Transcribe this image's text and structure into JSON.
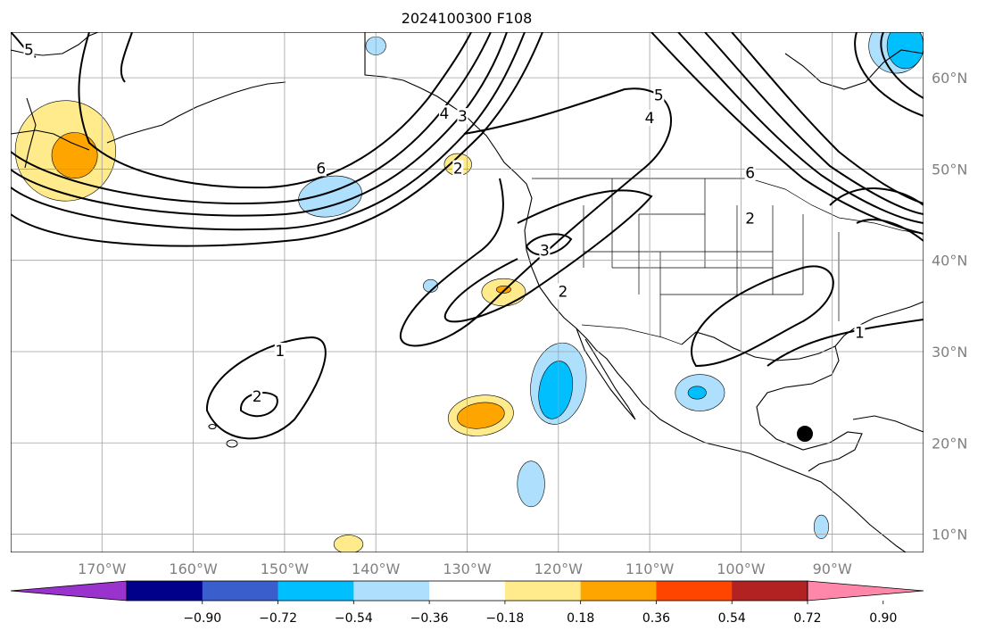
{
  "title": "2024100300 F108",
  "map": {
    "lon_ticks": [
      {
        "lon": -170,
        "label": "170°W"
      },
      {
        "lon": -160,
        "label": "160°W"
      },
      {
        "lon": -150,
        "label": "150°W"
      },
      {
        "lon": -140,
        "label": "140°W"
      },
      {
        "lon": -130,
        "label": "130°W"
      },
      {
        "lon": -120,
        "label": "120°W"
      },
      {
        "lon": -110,
        "label": "110°W"
      },
      {
        "lon": -100,
        "label": "100°W"
      },
      {
        "lon": -90,
        "label": "90°W"
      }
    ],
    "lat_ticks": [
      {
        "lat": 60,
        "label": "60°N"
      },
      {
        "lat": 50,
        "label": "50°N"
      },
      {
        "lat": 40,
        "label": "40°N"
      },
      {
        "lat": 30,
        "label": "30°N"
      },
      {
        "lat": 20,
        "label": "20°N"
      },
      {
        "lat": 10,
        "label": "10°N"
      }
    ],
    "extent": {
      "lon_min": -180,
      "lon_max": -80,
      "lat_min": 8,
      "lat_max": 65
    },
    "marker": {
      "lon": -93,
      "lat": 21,
      "color": "#000000"
    },
    "contour_labels": [
      {
        "text": "5",
        "lon": -178,
        "lat": 63
      },
      {
        "text": "6",
        "lon": -146,
        "lat": 50
      },
      {
        "text": "4",
        "lon": -132.5,
        "lat": 56
      },
      {
        "text": "3",
        "lon": -130.5,
        "lat": 55.7
      },
      {
        "text": "2",
        "lon": -131,
        "lat": 50
      },
      {
        "text": "3",
        "lon": -121.5,
        "lat": 41
      },
      {
        "text": "2",
        "lon": -119.5,
        "lat": 36.5
      },
      {
        "text": "1",
        "lon": -150.5,
        "lat": 30
      },
      {
        "text": "2",
        "lon": -153,
        "lat": 25
      },
      {
        "text": "5",
        "lon": -109,
        "lat": 58
      },
      {
        "text": "4",
        "lon": -110,
        "lat": 55.5
      },
      {
        "text": "6",
        "lon": -99,
        "lat": 49.5
      },
      {
        "text": "2",
        "lon": -99,
        "lat": 44.5
      },
      {
        "text": "1",
        "lon": -87,
        "lat": 32
      }
    ],
    "shading": [
      {
        "level": "0.18",
        "color": "#ffea8c",
        "lon": -174,
        "lat": 52,
        "rx": 5.5,
        "ry": 5.5,
        "rot": 40
      },
      {
        "level": "0.36",
        "color": "#ffa500",
        "lon": -173,
        "lat": 51.5,
        "rx": 2.5,
        "ry": 2.5,
        "rot": 40
      },
      {
        "level": "0.18",
        "color": "#ffea8c",
        "lon": -131,
        "lat": 50.5,
        "rx": 1.5,
        "ry": 1.2,
        "rot": 0
      },
      {
        "level": "-0.18",
        "color": "#aee0fd",
        "lon": -145,
        "lat": 47,
        "rx": 3.5,
        "ry": 2.2,
        "rot": -10
      },
      {
        "level": "-0.18",
        "color": "#aee0fd",
        "lon": -140,
        "lat": 63.5,
        "rx": 1.1,
        "ry": 1.0,
        "rot": 0
      },
      {
        "level": "0.18",
        "color": "#ffea8c",
        "lon": -126,
        "lat": 36.5,
        "rx": 2.4,
        "ry": 1.5,
        "rot": 0
      },
      {
        "level": "0.36",
        "color": "#ffa500",
        "lon": -126,
        "lat": 36.8,
        "rx": 0.8,
        "ry": 0.4,
        "rot": 0
      },
      {
        "level": "-0.18",
        "color": "#aee0fd",
        "lon": -134,
        "lat": 37.2,
        "rx": 0.8,
        "ry": 0.7,
        "rot": 0
      },
      {
        "level": "-0.18",
        "color": "#aee0fd",
        "lon": -120,
        "lat": 26.5,
        "rx": 3.0,
        "ry": 4.5,
        "rot": 10
      },
      {
        "level": "-0.36",
        "color": "#00bfff",
        "lon": -120.3,
        "lat": 25.8,
        "rx": 1.8,
        "ry": 3.2,
        "rot": 10
      },
      {
        "level": "0.18",
        "color": "#ffea8c",
        "lon": -128.5,
        "lat": 23,
        "rx": 3.6,
        "ry": 2.2,
        "rot": -8
      },
      {
        "level": "0.36",
        "color": "#ffa500",
        "lon": -128.5,
        "lat": 23,
        "rx": 2.6,
        "ry": 1.4,
        "rot": -8
      },
      {
        "level": "-0.18",
        "color": "#aee0fd",
        "lon": -104.5,
        "lat": 25.5,
        "rx": 2.7,
        "ry": 2.0,
        "rot": 0
      },
      {
        "level": "-0.36",
        "color": "#00bfff",
        "lon": -104.8,
        "lat": 25.5,
        "rx": 1.0,
        "ry": 0.7,
        "rot": 0
      },
      {
        "level": "-0.18",
        "color": "#aee0fd",
        "lon": -123,
        "lat": 15.5,
        "rx": 1.5,
        "ry": 2.5,
        "rot": 0
      },
      {
        "level": "-0.18",
        "color": "#aee0fd",
        "lon": -91.2,
        "lat": 10.8,
        "rx": 0.8,
        "ry": 1.3,
        "rot": 0
      },
      {
        "level": "0.18",
        "color": "#ffea8c",
        "lon": -143,
        "lat": 8.9,
        "rx": 1.6,
        "ry": 1.0,
        "rot": 0
      },
      {
        "level": "-0.18",
        "color": "#aee0fd",
        "lon": -83,
        "lat": 63.5,
        "rx": 3.0,
        "ry": 3.0,
        "rot": 0
      },
      {
        "level": "-0.36",
        "color": "#00bfff",
        "lon": -82,
        "lat": 63.5,
        "rx": 2.0,
        "ry": 2.5,
        "rot": 0
      }
    ]
  },
  "colorbar": {
    "colors": [
      "#9a32cd",
      "#00008b",
      "#3a5fcd",
      "#00bfff",
      "#aee0fd",
      "#ffffff",
      "#ffea8c",
      "#ffa500",
      "#ff4500",
      "#b22222",
      "#ff88aa"
    ],
    "tick_labels": [
      "−0.90",
      "−0.72",
      "−0.54",
      "−0.36",
      "−0.18",
      "0.18",
      "0.36",
      "0.54",
      "0.72",
      "0.90"
    ]
  }
}
